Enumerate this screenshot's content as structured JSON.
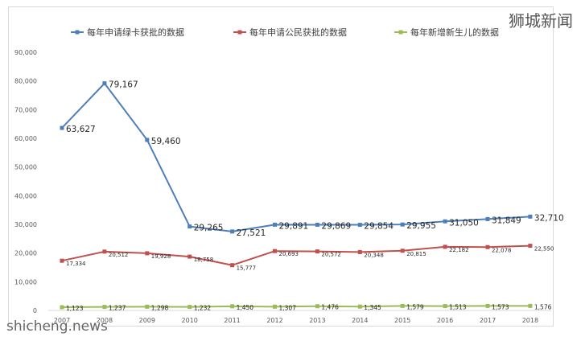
{
  "watermarks": {
    "top_right": "狮城新闻",
    "bottom_left": "shicheng.news"
  },
  "chart_data": {
    "type": "line",
    "title": "",
    "xlabel": "",
    "ylabel": "",
    "categories": [
      "2007",
      "2008",
      "2009",
      "2010",
      "2011",
      "2012",
      "2013",
      "2014",
      "2015",
      "2016",
      "2017",
      "2018"
    ],
    "ylim": [
      0,
      90000
    ],
    "yticks": [
      0,
      10000,
      20000,
      30000,
      40000,
      50000,
      60000,
      70000,
      80000,
      90000
    ],
    "ytick_labels": [
      "0",
      "10,000",
      "20,000",
      "30,000",
      "40,000",
      "50,000",
      "60,000",
      "70,000",
      "80,000",
      "90,000"
    ],
    "legend_position": "top",
    "grid": false,
    "series": [
      {
        "name": "每年申请绿卡获批的数据",
        "color": "#4f7fb8",
        "values": [
          63627,
          79167,
          59460,
          29265,
          27521,
          29891,
          29869,
          29854,
          29955,
          31050,
          31849,
          32710
        ],
        "labels": [
          "63,627",
          "79,167",
          "59,460",
          "29,265",
          "27,521",
          "29,891",
          "29,869",
          "29,854",
          "29,955",
          "31,050",
          "31,849",
          "32,710"
        ]
      },
      {
        "name": "每年申请公民获批的数据",
        "color": "#c0504d",
        "values": [
          17334,
          20512,
          19928,
          18758,
          15777,
          20693,
          20572,
          20348,
          20815,
          22182,
          22078,
          22550
        ],
        "labels": [
          "17,334",
          "20,512",
          "19,928",
          "18,758",
          "15,777",
          "20,693",
          "20,572",
          "20,348",
          "20,815",
          "22,182",
          "22,078",
          "22,550"
        ]
      },
      {
        "name": "每年新增新生儿的数据",
        "color": "#9bbb59",
        "values": [
          1123,
          1237,
          1298,
          1232,
          1450,
          1307,
          1476,
          1345,
          1579,
          1513,
          1573,
          1576
        ],
        "labels": [
          "1,123",
          "1,237",
          "1,298",
          "1,232",
          "1,450",
          "1,307",
          "1,476",
          "1,345",
          "1,579",
          "1,513",
          "1,573",
          "1,576"
        ]
      }
    ]
  }
}
